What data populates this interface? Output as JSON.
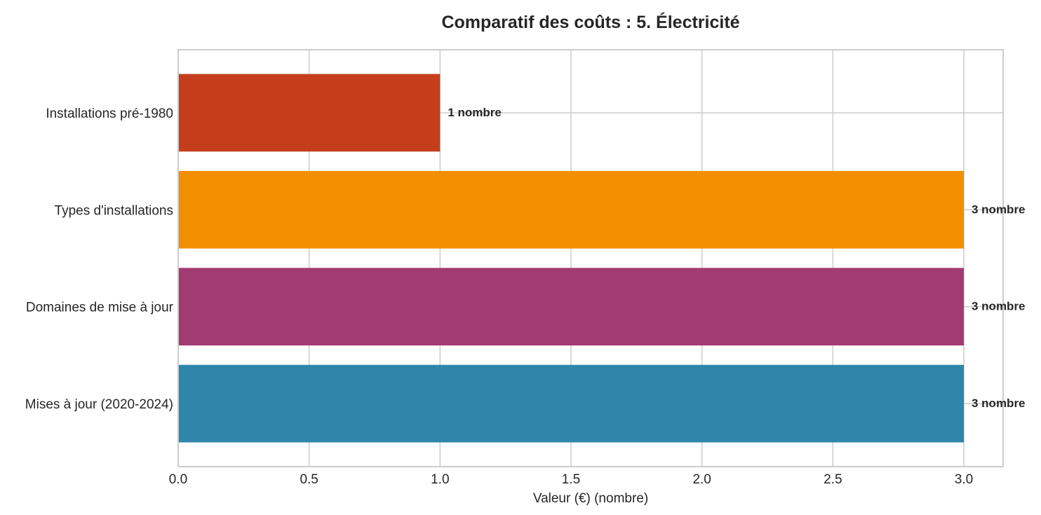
{
  "chart_data": {
    "type": "bar",
    "orientation": "horizontal",
    "title": "Comparatif des coûts : 5. Électricité",
    "xlabel": "Valeur (€) (nombre)",
    "ylabel": "",
    "categories": [
      "Installations pré-1980",
      "Types d'installations",
      "Domaines de mise à jour",
      "Mises à jour (2020-2024)"
    ],
    "values": [
      1,
      3,
      3,
      3
    ],
    "data_labels": [
      "1 nombre",
      "3 nombre",
      "3 nombre",
      "3 nombre"
    ],
    "colors": [
      "#c43e1c",
      "#f18f01",
      "#a23b72",
      "#2e86ab"
    ],
    "xlim": [
      0,
      3.15
    ],
    "xticks": [
      0.0,
      0.5,
      1.0,
      1.5,
      2.0,
      2.5,
      3.0
    ],
    "xtick_labels": [
      "0.0",
      "0.5",
      "1.0",
      "1.5",
      "2.0",
      "2.5",
      "3.0"
    ],
    "grid": true,
    "legend": "none"
  }
}
